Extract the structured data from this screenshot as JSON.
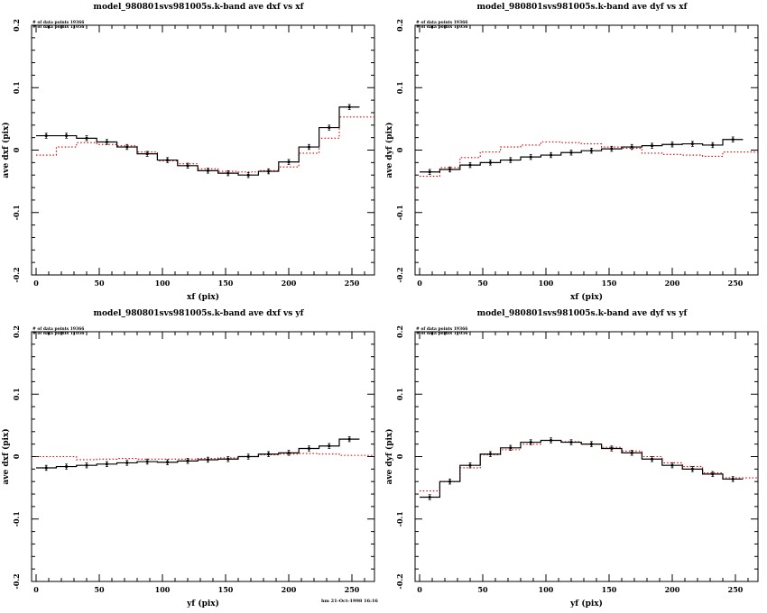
{
  "page": {
    "background": "#ffffff"
  },
  "footer": {
    "text": "hm 21-Oct-1998 16:16"
  },
  "colors": {
    "frame": "#000000",
    "black_series": "#000000",
    "red_series": "#dd0000"
  },
  "chart_data": [
    {
      "type": "line",
      "title": "model_980801svs981005s.k-band ave dxf vs xf",
      "xlabel": "xf (pix)",
      "ylabel": "ave dxf (pix)",
      "xlim": [
        -3.5,
        268
      ],
      "ylim": [
        -0.2,
        0.2
      ],
      "x_ticks_major": [
        0,
        50,
        100,
        150,
        200,
        250
      ],
      "x_tick_minor_step": 10,
      "y_ticks_major": [
        0.2,
        0.1,
        0,
        -0.1,
        -0.2
      ],
      "y_tick_minor_step": 0.02,
      "grid": false,
      "legend": "none",
      "bin_start": 0,
      "bin_width": 16,
      "annotations": [
        "# of data points 19366",
        "# of data points 11056"
      ],
      "series": [
        {
          "name": "black solid histogram",
          "color": "#000000",
          "style": "solid",
          "markers": true,
          "marker_error": 0.004,
          "values": [
            0.023,
            0.023,
            0.019,
            0.013,
            0.005,
            -0.006,
            -0.016,
            -0.025,
            -0.033,
            -0.037,
            -0.04,
            -0.034,
            -0.019,
            0.005,
            0.036,
            0.069
          ]
        },
        {
          "name": "red dotted histogram",
          "color": "#dd0000",
          "style": "dotted",
          "markers": false,
          "values": [
            -0.008,
            0.005,
            0.012,
            0.009,
            0.007,
            -0.003,
            -0.017,
            -0.022,
            -0.03,
            -0.034,
            -0.035,
            -0.033,
            -0.027,
            -0.005,
            0.019,
            0.053
          ]
        }
      ]
    },
    {
      "type": "line",
      "title": "model_980801svs981005s.k-band ave dyf vs xf",
      "xlabel": "xf (pix)",
      "ylabel": "ave dyf (pix)",
      "xlim": [
        -3.5,
        268
      ],
      "ylim": [
        -0.2,
        0.2
      ],
      "x_ticks_major": [
        0,
        50,
        100,
        150,
        200,
        250
      ],
      "x_tick_minor_step": 10,
      "y_ticks_major": [
        0.2,
        0.1,
        0,
        -0.1,
        -0.2
      ],
      "y_tick_minor_step": 0.02,
      "grid": false,
      "legend": "none",
      "bin_start": 0,
      "bin_width": 16,
      "annotations": [
        "# of data points 19366",
        "# of data points 11056"
      ],
      "series": [
        {
          "name": "black solid histogram",
          "color": "#000000",
          "style": "solid",
          "markers": true,
          "marker_error": 0.004,
          "values": [
            -0.035,
            -0.031,
            -0.024,
            -0.02,
            -0.016,
            -0.011,
            -0.008,
            -0.004,
            -0.001,
            0.002,
            0.005,
            0.007,
            0.009,
            0.01,
            0.008,
            0.017
          ]
        },
        {
          "name": "red dotted histogram",
          "color": "#dd0000",
          "style": "dotted",
          "markers": false,
          "values": [
            -0.042,
            -0.028,
            -0.012,
            -0.003,
            0.005,
            0.008,
            0.013,
            0.012,
            0.01,
            0.005,
            0.003,
            -0.005,
            -0.007,
            -0.008,
            -0.01,
            -0.003
          ]
        }
      ]
    },
    {
      "type": "line",
      "title": "model_980801svs981005s.k-band ave dxf vs yf",
      "xlabel": "yf (pix)",
      "ylabel": "ave dxf (pix)",
      "xlim": [
        -3.5,
        268
      ],
      "ylim": [
        -0.2,
        0.2
      ],
      "x_ticks_major": [
        0,
        50,
        100,
        150,
        200,
        250
      ],
      "x_tick_minor_step": 10,
      "y_ticks_major": [
        0.2,
        0.1,
        0,
        -0.1,
        -0.2
      ],
      "y_tick_minor_step": 0.02,
      "grid": false,
      "legend": "none",
      "bin_start": 0,
      "bin_width": 16,
      "annotations": [
        "# of data points 19366",
        "# of data points 11056"
      ],
      "series": [
        {
          "name": "black solid histogram",
          "color": "#000000",
          "style": "solid",
          "markers": true,
          "marker_error": 0.004,
          "values": [
            -0.018,
            -0.016,
            -0.014,
            -0.012,
            -0.01,
            -0.008,
            -0.009,
            -0.007,
            -0.005,
            -0.004,
            0.0,
            0.004,
            0.006,
            0.013,
            0.017,
            0.028
          ]
        },
        {
          "name": "red dotted histogram",
          "color": "#dd0000",
          "style": "dotted",
          "markers": false,
          "values": [
            0.0,
            0.0,
            -0.005,
            -0.004,
            -0.003,
            -0.004,
            -0.004,
            -0.004,
            -0.003,
            -0.002,
            0.0,
            0.003,
            0.004,
            0.005,
            0.004,
            0.002
          ]
        }
      ]
    },
    {
      "type": "line",
      "title": "model_980801svs981005s.k-band ave dyf vs yf",
      "xlabel": "yf (pix)",
      "ylabel": "ave dyf (pix)",
      "xlim": [
        -3.5,
        268
      ],
      "ylim": [
        -0.2,
        0.2
      ],
      "x_ticks_major": [
        0,
        50,
        100,
        150,
        200,
        250
      ],
      "x_tick_minor_step": 10,
      "y_ticks_major": [
        0.2,
        0.1,
        0,
        -0.1,
        -0.2
      ],
      "y_tick_minor_step": 0.02,
      "grid": false,
      "legend": "none",
      "bin_start": 0,
      "bin_width": 16,
      "annotations": [
        "# of data points 19366",
        "# of data points 11056"
      ],
      "series": [
        {
          "name": "black solid histogram",
          "color": "#000000",
          "style": "solid",
          "markers": true,
          "marker_error": 0.004,
          "values": [
            -0.065,
            -0.04,
            -0.014,
            0.004,
            0.014,
            0.023,
            0.026,
            0.023,
            0.02,
            0.013,
            0.006,
            -0.004,
            -0.014,
            -0.02,
            -0.028,
            -0.036
          ]
        },
        {
          "name": "red dotted histogram",
          "color": "#dd0000",
          "style": "dotted",
          "markers": false,
          "values": [
            -0.055,
            -0.04,
            -0.018,
            0.003,
            0.011,
            0.02,
            0.026,
            0.024,
            0.02,
            0.015,
            0.009,
            0.0,
            -0.01,
            -0.016,
            -0.026,
            -0.034
          ]
        }
      ]
    }
  ]
}
